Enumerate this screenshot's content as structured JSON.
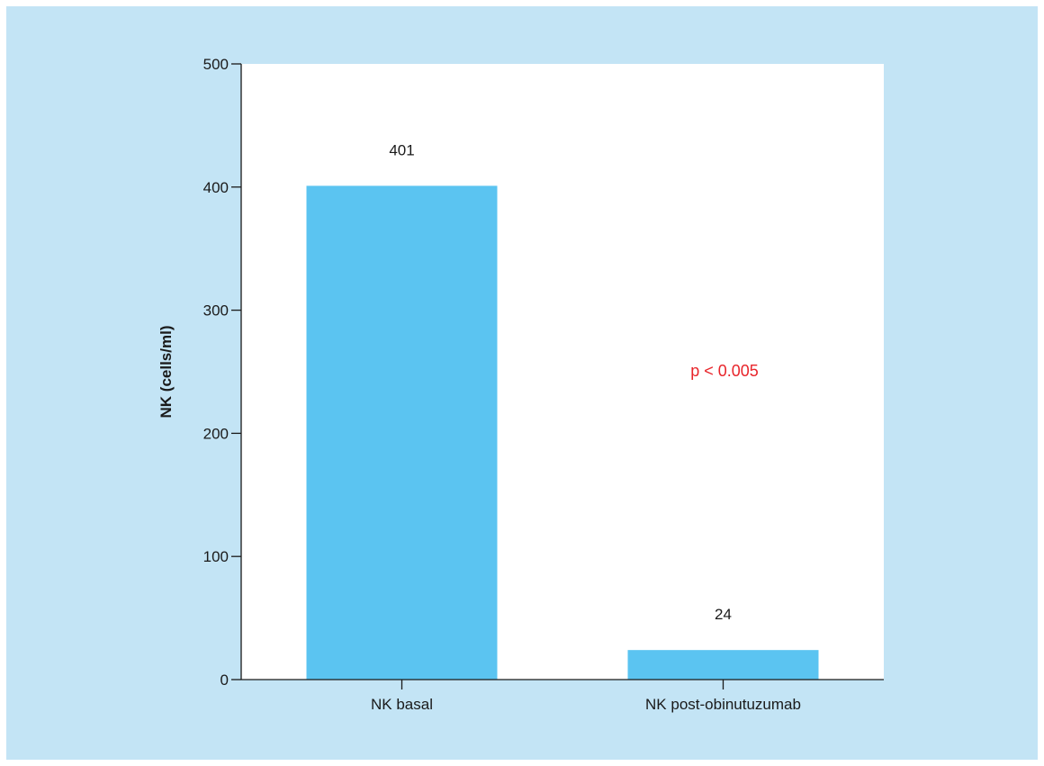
{
  "chart_data": {
    "type": "bar",
    "title": "",
    "categories": [
      "NK basal",
      "NK post-obinutuzumab"
    ],
    "values": [
      401,
      24
    ],
    "data_labels": [
      "401",
      "24"
    ],
    "xlabel": "",
    "ylabel": "NK (cells/ml)",
    "ylim": [
      0,
      500
    ],
    "yticks": [
      0,
      100,
      200,
      300,
      400,
      500
    ],
    "ytick_labels": [
      "0",
      "100",
      "200",
      "300",
      "400",
      "500"
    ],
    "grid": false,
    "annotation": "p < 0.005",
    "colors": {
      "bar": "#5bc4f1",
      "annotation": "#e8242a",
      "panel_background": "#c3e4f5",
      "plot_background": "#ffffff"
    }
  }
}
